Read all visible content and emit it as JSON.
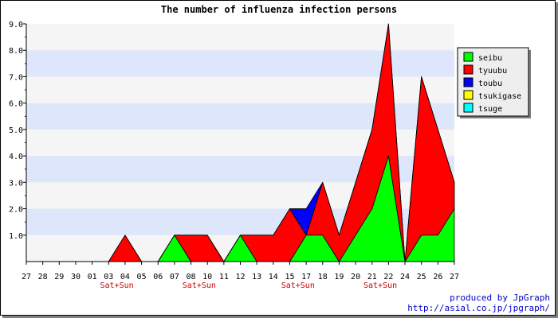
{
  "chart_data": {
    "type": "area",
    "title": "The number of influenza infection persons",
    "xlabel": "",
    "ylabel": "",
    "ylim": [
      0,
      9
    ],
    "yticks": [
      "1.0",
      "2.0",
      "3.0",
      "4.0",
      "5.0",
      "6.0",
      "7.0",
      "8.0",
      "9.0"
    ],
    "stacked": true,
    "legend_position": "right",
    "categories": [
      "27",
      "28",
      "29",
      "30",
      "01",
      "03",
      "04",
      "05",
      "06",
      "07",
      "08",
      "10",
      "11",
      "12",
      "13",
      "14",
      "15",
      "17",
      "18",
      "19",
      "20",
      "21",
      "22",
      "24",
      "25",
      "26",
      "27"
    ],
    "weekend_label": "Sat+Sun",
    "weekend_marks": [
      "03",
      "08",
      "15",
      "21"
    ],
    "series": [
      {
        "name": "seibu",
        "color": "#00ff00",
        "values": [
          0,
          0,
          0,
          0,
          0,
          0,
          0,
          0,
          0,
          1,
          0,
          0,
          0,
          1,
          0,
          0,
          0,
          1,
          1,
          0,
          1,
          2,
          4,
          0,
          1,
          1,
          2
        ]
      },
      {
        "name": "tyuubu",
        "color": "#ff0000",
        "values": [
          0,
          0,
          0,
          0,
          0,
          0,
          1,
          0,
          0,
          0,
          1,
          1,
          0,
          0,
          1,
          1,
          2,
          0,
          2,
          1,
          2,
          3,
          5,
          0,
          6,
          4,
          1
        ]
      },
      {
        "name": "toubu",
        "color": "#0000ff",
        "values": [
          0,
          0,
          0,
          0,
          0,
          0,
          0,
          0,
          0,
          0,
          0,
          0,
          0,
          0,
          0,
          0,
          0,
          1,
          0,
          0,
          0,
          0,
          0,
          0,
          0,
          0,
          0
        ]
      },
      {
        "name": "tsukigase",
        "color": "#ffff00",
        "values": [
          0,
          0,
          0,
          0,
          0,
          0,
          0,
          0,
          0,
          0,
          0,
          0,
          0,
          0,
          0,
          0,
          0,
          0,
          0,
          0,
          0,
          0,
          0,
          0,
          0,
          0,
          0
        ]
      },
      {
        "name": "tsuge",
        "color": "#00ffff",
        "values": [
          0,
          0,
          0,
          0,
          0,
          0,
          0,
          0,
          0,
          0,
          0,
          0,
          0,
          0,
          0,
          0,
          0,
          0,
          0,
          0,
          0,
          0,
          0,
          0,
          0,
          0,
          0
        ]
      }
    ],
    "colors": {
      "band_light": "#f5f5f5",
      "band_dark": "#dde6fa",
      "weekend_text": "#cc0000",
      "axis": "#000000"
    }
  },
  "credits": {
    "line1": "produced by JpGraph",
    "line2": "http://asial.co.jp/jpgraph/"
  }
}
